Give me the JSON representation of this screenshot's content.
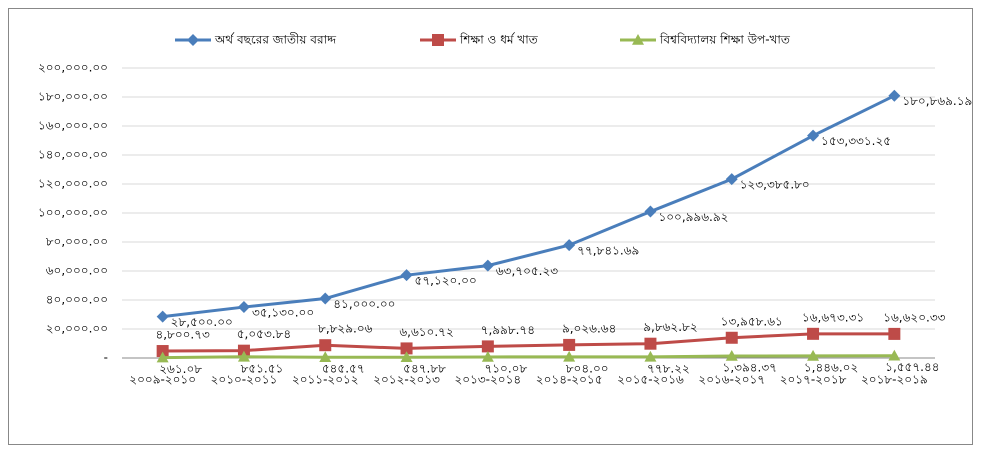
{
  "chart_data": {
    "type": "line",
    "categories": [
      "২০০৯-২০১০",
      "২০১০-২০১১",
      "২০১১-২০১২",
      "২০১২-২০১৩",
      "২০১৩-২০১৪",
      "২০১৪-২০১৫",
      "২০১৫-২০১৬",
      "২০১৬-২০১৭",
      "২০১৭-২০১৮",
      "২০১৮-২০১৯"
    ],
    "series": [
      {
        "name": "অর্থ বছরের জাতীয় বরাদ্দ",
        "color": "#4a7ebb",
        "marker": "diamond",
        "values": [
          28500,
          35130,
          41000,
          57120,
          63705.23,
          77841.69,
          100996.92,
          123385.8,
          153331.25,
          180869.19
        ],
        "value_labels": [
          "২৮,৫০০.০০",
          "৩৫,১৩০.০০",
          "৪১,০০০.০০",
          "৫৭,১২০.০০",
          "৬৩,৭০৫.২৩",
          "৭৭,৮৪১.৬৯",
          "১০০,৯৯৬.৯২",
          "১২৩,৩৮৫.৮০",
          "১৫৩,৩৩১.২৫",
          "১৮০,৮৬৯.১৯"
        ]
      },
      {
        "name": "শিক্ষা ও ধর্ম খাত",
        "color": "#be4b48",
        "marker": "square",
        "values": [
          4800.73,
          5053.84,
          8829.06,
          6610.72,
          7998.74,
          9026.64,
          9862.82,
          13958.61,
          16673.31,
          16620.33
        ],
        "value_labels": [
          "৪,৮০০.৭৩",
          "৫,০৫৩.৮৪",
          "৮,৮২৯.০৬",
          "৬,৬১০.৭২",
          "৭,৯৯৮.৭৪",
          "৯,০২৬.৬৪",
          "৯,৮৬২.৮২",
          "১৩,৯৫৮.৬১",
          "১৬,৬৭৩.৩১",
          "১৬,৬২০.৩৩"
        ]
      },
      {
        "name": "বিশ্ববিদ্যালয় শিক্ষা উপ-খাত",
        "color": "#98b954",
        "marker": "triangle",
        "values": [
          261.08,
          851.51,
          545.57,
          547.88,
          710.08,
          804.0,
          778.22,
          1394.37,
          1446.02,
          1557.44
        ],
        "value_labels": [
          "২৬১.০৮",
          "৮৫১.৫১",
          "৫৪৫.৫৭",
          "৫৪৭.৮৮",
          "৭১০.০৮",
          "৮০৪.০০",
          "৭৭৮.২২",
          "১,৩৯৪.৩৭",
          "১,৪৪৬.০২",
          "১,৫৫৭.৪৪"
        ]
      }
    ],
    "ylim": [
      0,
      200000
    ],
    "yticks": [
      {
        "value": 0,
        "label": "-"
      },
      {
        "value": 20000,
        "label": "২০,০০০.০০"
      },
      {
        "value": 40000,
        "label": "৪০,০০০.০০"
      },
      {
        "value": 60000,
        "label": "৬০,০০০.০০"
      },
      {
        "value": 80000,
        "label": "৮০,০০০.০০"
      },
      {
        "value": 100000,
        "label": "১০০,০০০.০০"
      },
      {
        "value": 120000,
        "label": "১২০,০০০.০০"
      },
      {
        "value": 140000,
        "label": "১৪০,০০০.০০"
      },
      {
        "value": 160000,
        "label": "১৬০,০০০.০০"
      },
      {
        "value": 180000,
        "label": "১৮০,০০০.০০"
      },
      {
        "value": 200000,
        "label": "২০০,০০০.০০"
      }
    ],
    "grid": true,
    "legend": "top"
  }
}
